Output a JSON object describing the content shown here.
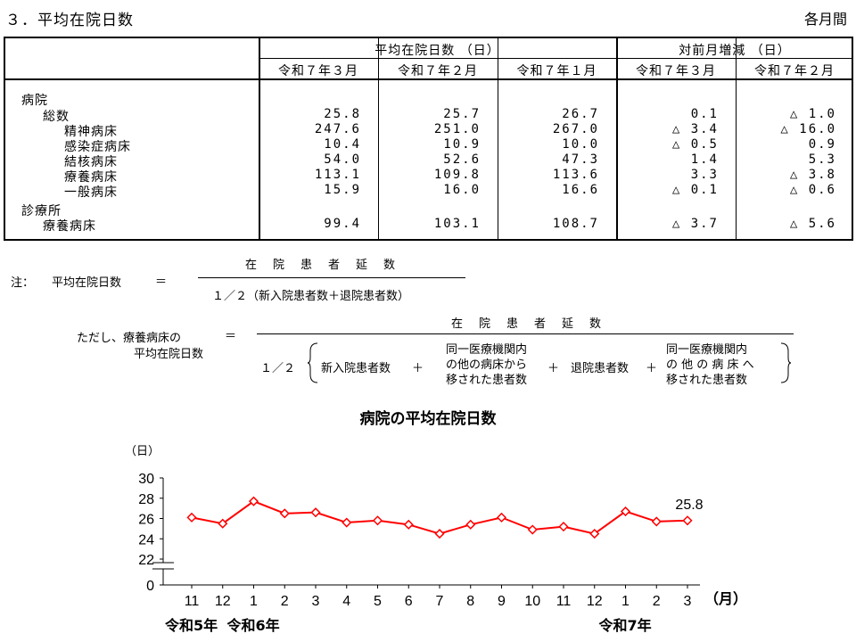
{
  "section_title": "３．平均在院日数",
  "period_label": "各月間",
  "table": {
    "group_headers": {
      "avg_days": "平均在院日数 （日）",
      "change": "対前月増減 （日）"
    },
    "col_headers": [
      "令和７年３月",
      "令和７年２月",
      "令和７年１月",
      "令和７年３月",
      "令和７年２月"
    ],
    "rows": [
      {
        "label": "病院",
        "indent": 0,
        "values": [
          "",
          "",
          "",
          "",
          ""
        ]
      },
      {
        "label": "総数",
        "indent": 1,
        "values": [
          "25.8",
          "25.7",
          "26.7",
          "0.1",
          "△ 1.0"
        ]
      },
      {
        "label": "精神病床",
        "indent": 2,
        "values": [
          "247.6",
          "251.0",
          "267.0",
          "△ 3.4",
          "△ 16.0"
        ]
      },
      {
        "label": "感染症病床",
        "indent": 2,
        "values": [
          "10.4",
          "10.9",
          "10.0",
          "△ 0.5",
          "0.9"
        ]
      },
      {
        "label": "結核病床",
        "indent": 2,
        "values": [
          "54.0",
          "52.6",
          "47.3",
          "1.4",
          "5.3"
        ]
      },
      {
        "label": "療養病床",
        "indent": 2,
        "values": [
          "113.1",
          "109.8",
          "113.6",
          "3.3",
          "△ 3.8"
        ]
      },
      {
        "label": "一般病床",
        "indent": 2,
        "values": [
          "15.9",
          "16.0",
          "16.6",
          "△ 0.1",
          "△ 0.6"
        ]
      },
      {
        "label": "診療所",
        "indent": 0,
        "values": [
          "",
          "",
          "",
          "",
          ""
        ]
      },
      {
        "label": "療養病床",
        "indent": 1,
        "values": [
          "99.4",
          "103.1",
          "108.7",
          "△ 3.7",
          "△ 5.6"
        ]
      }
    ]
  },
  "notes": {
    "note_label": "注：",
    "formula1": {
      "lhs": "平均在院日数",
      "eq": "＝",
      "numerator": "在院患者延数",
      "denominator": "１／２（新入院患者数＋退院患者数）"
    },
    "formula2": {
      "lhs_line1": "ただし、療養病床の",
      "lhs_line2": "平均在院日数",
      "eq": "＝",
      "numerator": "在院患者延数",
      "half": "１／２",
      "term1": "新入院患者数",
      "plus1": "＋",
      "term2_lines": [
        "同一医療機関内",
        "の他の病床から",
        "移された患者数"
      ],
      "plus2": "＋",
      "term3": "退院患者数",
      "plus3": "＋",
      "term4_lines": [
        "同一医療機関内",
        "の 他 の 病 床 へ",
        "移された患者数"
      ]
    }
  },
  "chart_data": {
    "type": "line",
    "title": "病院の平均在院日数",
    "y_unit": "（日）",
    "x_unit": "（月）",
    "categories": [
      "11",
      "12",
      "1",
      "2",
      "3",
      "4",
      "5",
      "6",
      "7",
      "8",
      "9",
      "10",
      "11",
      "12",
      "1",
      "2",
      "3"
    ],
    "year_labels": [
      {
        "label": "令和5年",
        "at_index": 0
      },
      {
        "label": "令和6年",
        "at_index": 2
      },
      {
        "label": "令和7年",
        "at_index": 14
      }
    ],
    "series": [
      {
        "name": "",
        "color": "#ff0000",
        "values": [
          26.1,
          25.5,
          27.7,
          26.5,
          26.6,
          25.6,
          25.8,
          25.4,
          24.5,
          25.4,
          26.1,
          24.9,
          25.2,
          24.5,
          26.7,
          25.7,
          25.8
        ]
      }
    ],
    "last_value_label": "25.8",
    "yticks": [
      0,
      22,
      24,
      26,
      28,
      30
    ],
    "ylim": [
      22,
      30
    ],
    "axis_break": true,
    "grid": false
  }
}
